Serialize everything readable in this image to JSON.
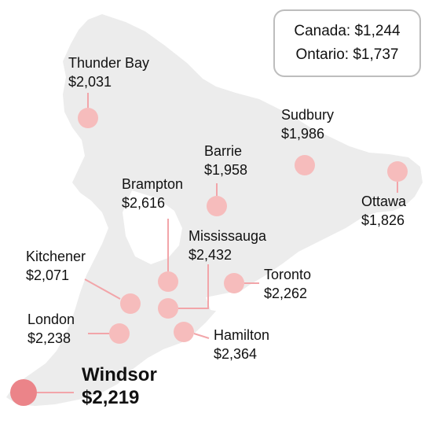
{
  "summary": {
    "canada": "Canada: $1,244",
    "ontario": "Ontario: $1,737"
  },
  "cities": [
    {
      "name": "Thunder Bay",
      "price": "$2,031",
      "highlight": false
    },
    {
      "name": "Sudbury",
      "price": "$1,986",
      "highlight": false
    },
    {
      "name": "Barrie",
      "price": "$1,958",
      "highlight": false
    },
    {
      "name": "Brampton",
      "price": "$2,616",
      "highlight": false
    },
    {
      "name": "Ottawa",
      "price": "$1,826",
      "highlight": false
    },
    {
      "name": "Mississauga",
      "price": "$2,432",
      "highlight": false
    },
    {
      "name": "Kitchener",
      "price": "$2,071",
      "highlight": false
    },
    {
      "name": "Toronto",
      "price": "$2,262",
      "highlight": false
    },
    {
      "name": "London",
      "price": "$2,238",
      "highlight": false
    },
    {
      "name": "Hamilton",
      "price": "$2,364",
      "highlight": false
    },
    {
      "name": "Windsor",
      "price": "$2,219",
      "highlight": true
    }
  ],
  "colors": {
    "land": "#ececec",
    "marker": "#f6bcbc",
    "marker_highlight": "#eb8489",
    "leader": "#f2a5a9",
    "border": "#bdbdbd"
  }
}
